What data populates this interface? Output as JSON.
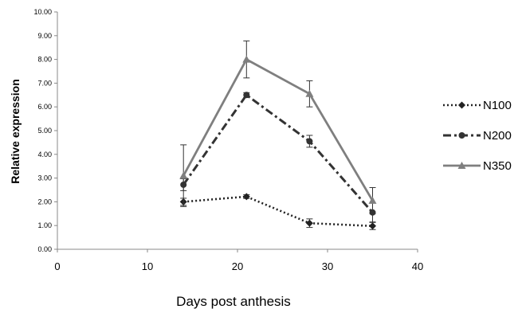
{
  "chart_data": {
    "type": "line",
    "title": "",
    "xlabel": "Days post anthesis",
    "ylabel": "Relative expression",
    "xlim": [
      0,
      40
    ],
    "ylim": [
      0,
      10
    ],
    "x_ticks": [
      "0",
      "10",
      "20",
      "30",
      "40"
    ],
    "y_ticks": [
      "0.00",
      "1.00",
      "2.00",
      "3.00",
      "4.00",
      "5.00",
      "6.00",
      "7.00",
      "8.00",
      "9.00",
      "10.00"
    ],
    "grid": false,
    "legend_position": "right",
    "series": [
      {
        "name": "N100",
        "line_style": "dotted",
        "marker": "diamond",
        "color": "#222222",
        "points": [
          {
            "x": 14,
            "y": 2.0,
            "err": 0.15
          },
          {
            "x": 21,
            "y": 2.22,
            "err": 0.08
          },
          {
            "x": 28,
            "y": 1.1,
            "err": 0.18
          },
          {
            "x": 35,
            "y": 0.98,
            "err": 0.15
          }
        ]
      },
      {
        "name": "N200",
        "line_style": "dashdot",
        "marker": "circle",
        "color": "#333333",
        "points": [
          {
            "x": 14,
            "y": 2.72,
            "err": 0.25
          },
          {
            "x": 21,
            "y": 6.5,
            "err": 0.1
          },
          {
            "x": 28,
            "y": 4.55,
            "err": 0.25
          },
          {
            "x": 35,
            "y": 1.55,
            "err": 0.4
          }
        ]
      },
      {
        "name": "N350",
        "line_style": "solid",
        "marker": "triangle",
        "color": "#7f7f7f",
        "points": [
          {
            "x": 14,
            "y": 3.1,
            "err": 1.3
          },
          {
            "x": 21,
            "y": 8.0,
            "err": 0.78
          },
          {
            "x": 28,
            "y": 6.55,
            "err": 0.55
          },
          {
            "x": 35,
            "y": 2.05,
            "err": 0.55
          }
        ]
      }
    ]
  }
}
